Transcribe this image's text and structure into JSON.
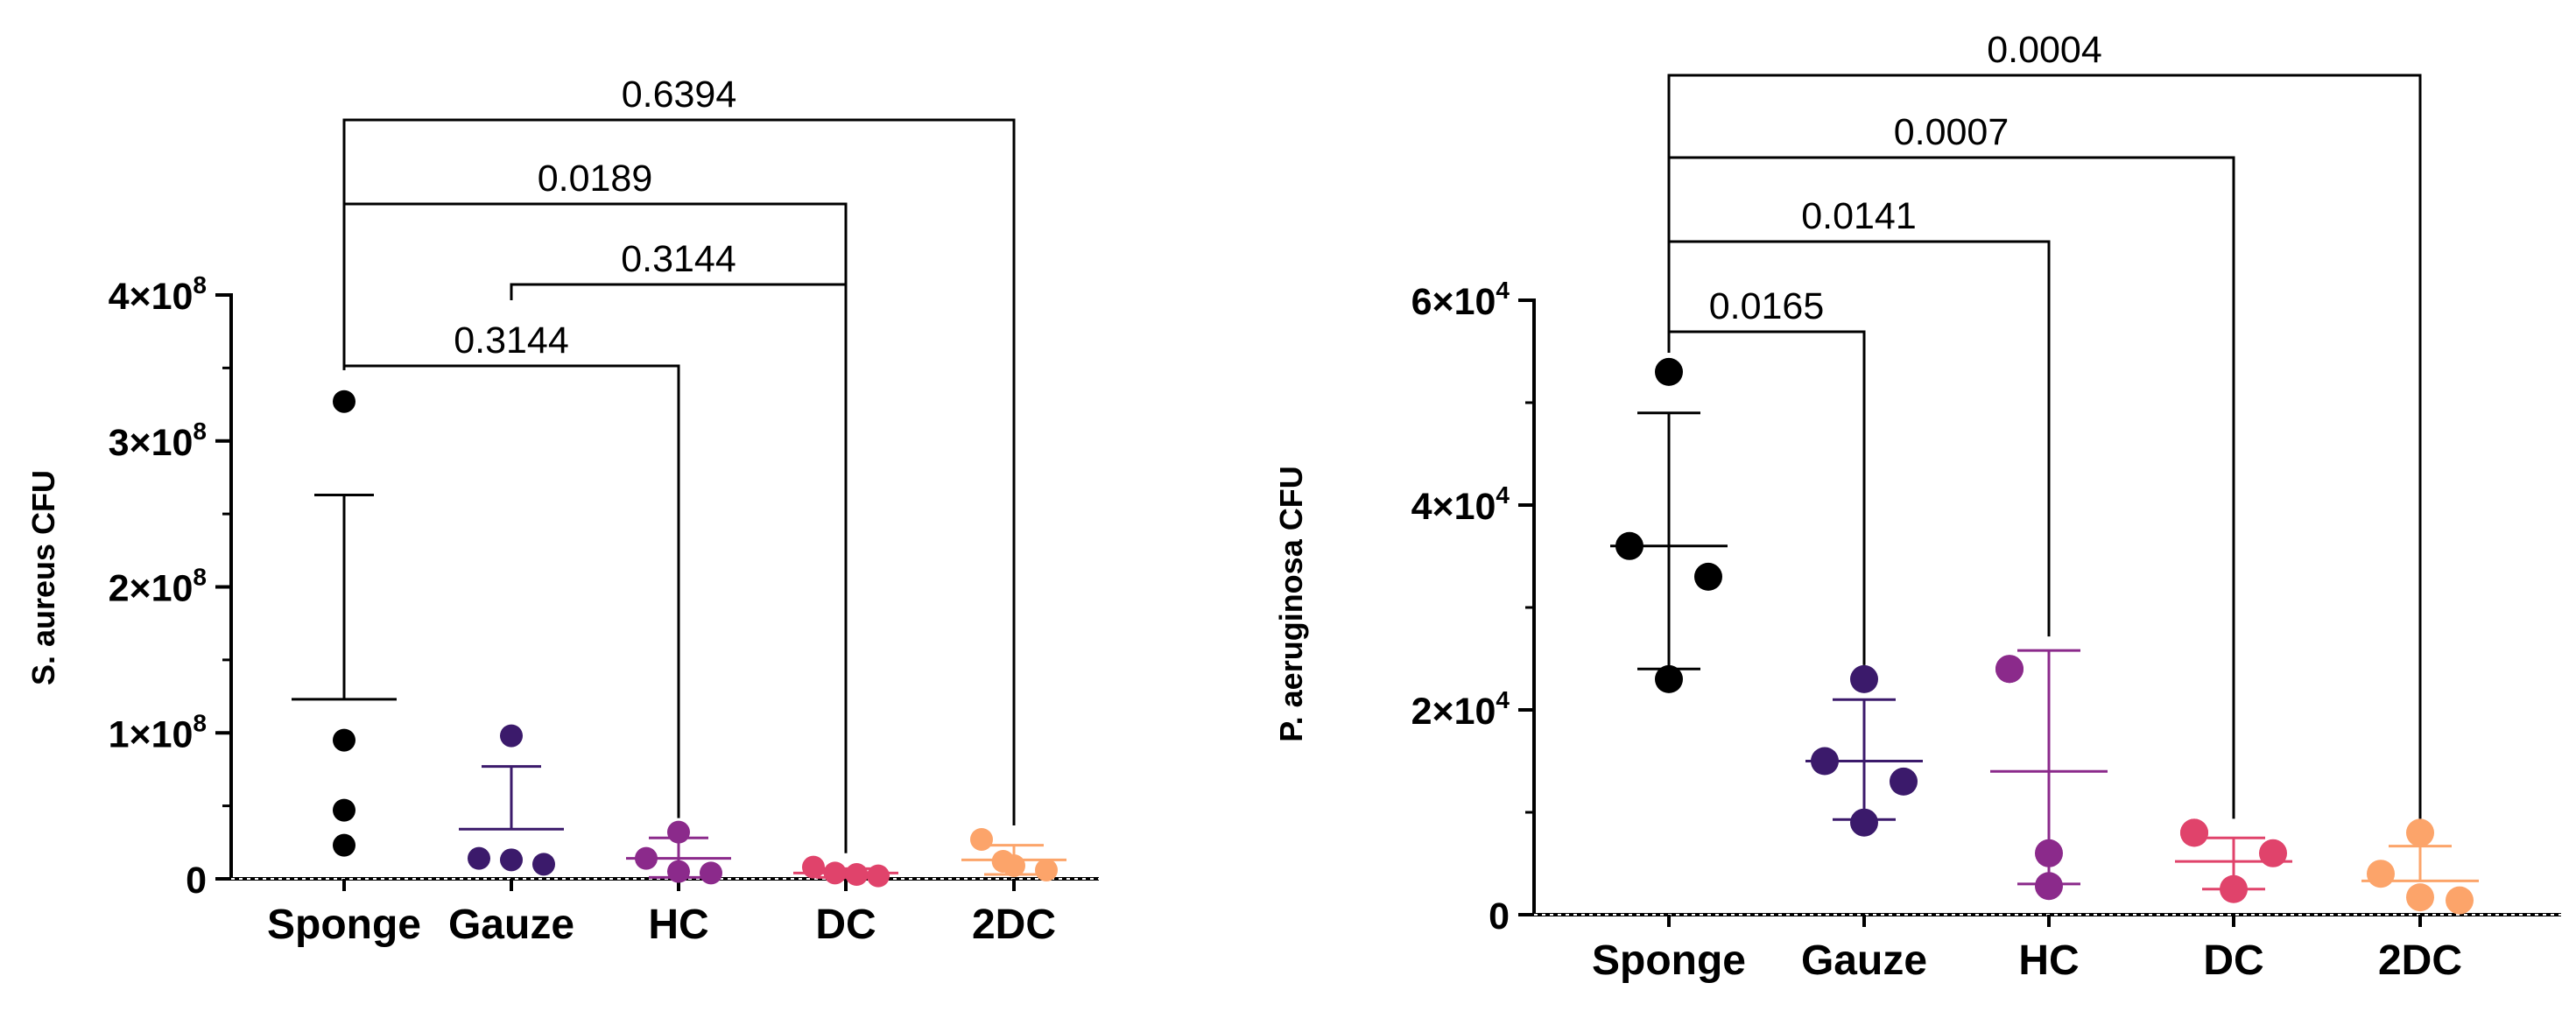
{
  "chart_data": [
    {
      "type": "scatter",
      "title": "",
      "xlabel": "",
      "ylabel": "S. aureus CFU",
      "ylim": [
        0,
        400000000
      ],
      "categories": [
        "Sponge",
        "Gauze",
        "HC",
        "DC",
        "2DC"
      ],
      "yticks": [
        {
          "value": 0,
          "label": "0"
        },
        {
          "value": 100000000,
          "base": "1×10",
          "exp": "8"
        },
        {
          "value": 200000000,
          "base": "2×10",
          "exp": "8"
        },
        {
          "value": 300000000,
          "base": "3×10",
          "exp": "8"
        },
        {
          "value": 400000000,
          "base": "4×10",
          "exp": "8"
        }
      ],
      "series": [
        {
          "name": "Sponge",
          "color": "#000000",
          "points": [
            327000000,
            95000000,
            47000000,
            23000000
          ],
          "mean": 123000000,
          "sd_upper": 263000000,
          "sd_lower": null
        },
        {
          "name": "Gauze",
          "color": "#3b1a6b",
          "points": [
            98000000,
            14000000,
            13000000,
            10000000
          ],
          "mean": 34000000,
          "sd_upper": 77000000,
          "sd_lower": null
        },
        {
          "name": "HC",
          "color": "#8b2a8b",
          "points": [
            32000000,
            14000000,
            5000000,
            4000000
          ],
          "mean": 14000000,
          "sd_upper": 28000000,
          "sd_lower": 1000000
        },
        {
          "name": "DC",
          "color": "#e0436b",
          "points": [
            8000000,
            4000000,
            3000000,
            2000000
          ],
          "mean": 4000000,
          "sd_upper": 7000000,
          "sd_lower": 1000000
        },
        {
          "name": "2DC",
          "color": "#fca46a",
          "points": [
            27000000,
            12000000,
            9000000,
            6000000
          ],
          "mean": 13000000,
          "sd_upper": 23000000,
          "sd_lower": 3000000
        }
      ],
      "comparisons": [
        {
          "from": "Sponge",
          "to": "2DC",
          "p": "0.6394",
          "level": 3
        },
        {
          "from": "Sponge",
          "to": "DC",
          "p": "0.0189",
          "level": 2
        },
        {
          "from": "Gauze",
          "to": "DC",
          "p": "0.3144",
          "level": 1
        },
        {
          "from": "Sponge",
          "to": "HC",
          "p": "0.3144",
          "level": 0
        }
      ]
    },
    {
      "type": "scatter",
      "title": "",
      "xlabel": "",
      "ylabel": "P. aeruginosa CFU",
      "ylim": [
        0,
        60000
      ],
      "categories": [
        "Sponge",
        "Gauze",
        "HC",
        "DC",
        "2DC"
      ],
      "yticks": [
        {
          "value": 0,
          "label": "0"
        },
        {
          "value": 20000,
          "base": "2×10",
          "exp": "4"
        },
        {
          "value": 40000,
          "base": "4×10",
          "exp": "4"
        },
        {
          "value": 60000,
          "base": "6×10",
          "exp": "4"
        }
      ],
      "series": [
        {
          "name": "Sponge",
          "color": "#000000",
          "points": [
            53000,
            36000,
            33000,
            23000
          ],
          "mean": 36000,
          "sd_upper": 49000,
          "sd_lower": 24000
        },
        {
          "name": "Gauze",
          "color": "#3b1a6b",
          "points": [
            23000,
            15000,
            13000,
            9000
          ],
          "mean": 15000,
          "sd_upper": 21000,
          "sd_lower": 9300
        },
        {
          "name": "HC",
          "color": "#8b2a8b",
          "points": [
            24000,
            24000,
            6000,
            2800
          ],
          "mean": 14000,
          "sd_upper": 25800,
          "sd_lower": 3000
        },
        {
          "name": "DC",
          "color": "#e0436b",
          "points": [
            8000,
            8000,
            6000,
            2500
          ],
          "mean": 5200,
          "sd_upper": 7500,
          "sd_lower": 2500
        },
        {
          "name": "2DC",
          "color": "#fca46a",
          "points": [
            8000,
            4000,
            1700,
            1400
          ],
          "mean": 3300,
          "sd_upper": 6700,
          "sd_lower": null
        }
      ],
      "comparisons": [
        {
          "from": "Sponge",
          "to": "2DC",
          "p": "0.0004",
          "level": 3
        },
        {
          "from": "Sponge",
          "to": "DC",
          "p": "0.0007",
          "level": 2
        },
        {
          "from": "Sponge",
          "to": "HC",
          "p": "0.0141",
          "level": 1
        },
        {
          "from": "Sponge",
          "to": "Gauze",
          "p": "0.0165",
          "level": 0
        }
      ]
    }
  ]
}
